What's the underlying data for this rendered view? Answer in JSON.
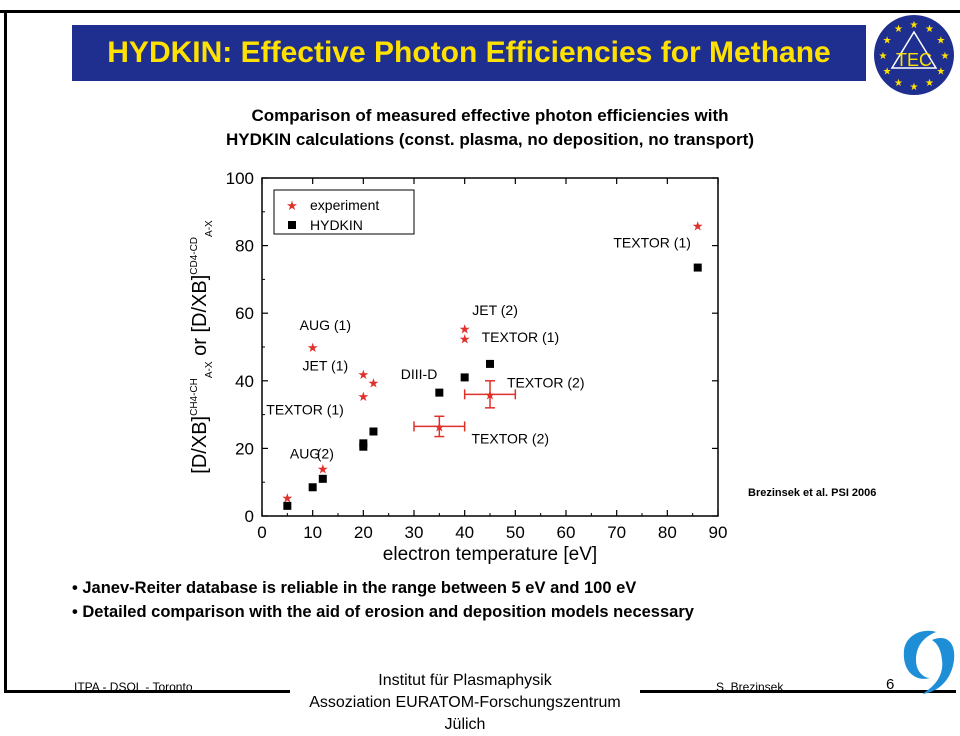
{
  "title": "HYDKIN: Effective Photon Efficiencies for Methane",
  "logo_text": "TEC",
  "subtitle_line1": "Comparison of measured effective photon efficiencies with",
  "subtitle_line2": "HYDKIN calculations (const. plasma, no deposition, no transport)",
  "chart_data": {
    "type": "scatter",
    "xlabel": "electron temperature [eV]",
    "ylabel": "[D/XB]A-X CH4-CH or [D/XB]A-X CD4-CD",
    "ylabel_parts": {
      "main1": "[D/XB]",
      "sup1": "CH4-CH",
      "sub1": "A-X",
      "or": " or ",
      "main2": "[D/XB]",
      "sup2": "CD4-CD",
      "sub2": "A-X"
    },
    "xlim": [
      0,
      90
    ],
    "ylim": [
      0,
      100
    ],
    "xticks": [
      0,
      10,
      20,
      30,
      40,
      50,
      60,
      70,
      80,
      90
    ],
    "yticks": [
      0,
      20,
      40,
      60,
      80,
      100
    ],
    "legend_position": "top-left",
    "series": [
      {
        "name": "experiment",
        "marker": "star",
        "color": "#e0302a",
        "x": [
          5,
          10,
          12,
          20,
          20,
          22,
          40,
          40,
          86
        ],
        "y": [
          5.5,
          50,
          14,
          42,
          35.5,
          39.5,
          55.5,
          52.5,
          86
        ]
      },
      {
        "name": "HYDKIN",
        "marker": "square",
        "color": "#000000",
        "x": [
          5,
          10,
          12,
          20,
          20,
          22,
          35,
          40,
          45,
          86
        ],
        "y": [
          3,
          8.5,
          11,
          20.5,
          21.5,
          25,
          36.5,
          41,
          45,
          73.5
        ]
      }
    ],
    "error_points": [
      {
        "x": 35,
        "y": 26.5,
        "xerr": 5,
        "yerr": 3
      },
      {
        "x": 45,
        "y": 36,
        "xerr": 5,
        "yerr": 4
      }
    ],
    "annotations": [
      {
        "text": "AUG (1)",
        "x": 12.5,
        "y": 55
      },
      {
        "text": "JET (1)",
        "x": 12.5,
        "y": 43
      },
      {
        "text": "TEXTOR (1)",
        "x": 8.5,
        "y": 30
      },
      {
        "text": "AUG",
        "x": 8.5,
        "y": 17
      },
      {
        "text": "(2)",
        "x": 12.5,
        "y": 17
      },
      {
        "text": "DIII-D",
        "x": 31,
        "y": 40.5
      },
      {
        "text": "JET (2)",
        "x": 46,
        "y": 59.5
      },
      {
        "text": "TEXTOR (1)",
        "x": 51,
        "y": 51.5
      },
      {
        "text": "TEXTOR (2)",
        "x": 56,
        "y": 38
      },
      {
        "text": "TEXTOR (2)",
        "x": 49,
        "y": 21.5
      },
      {
        "text": "TEXTOR (1)",
        "x": 77,
        "y": 79.5
      }
    ]
  },
  "source_note": "Brezinsek et al. PSI 2006",
  "bullets": [
    "Janev-Reiter database is reliable in the range between 5 eV and 100 eV",
    "Detailed comparison with the aid of erosion and deposition models necessary"
  ],
  "footer": {
    "left": "ITPA  - DSOL - Toronto",
    "right": "S. Brezinsek",
    "page": "6",
    "institute_line1": "Institut für Plasmaphysik",
    "institute_line2": "Assoziation EURATOM-Forschungszentrum Jülich"
  }
}
